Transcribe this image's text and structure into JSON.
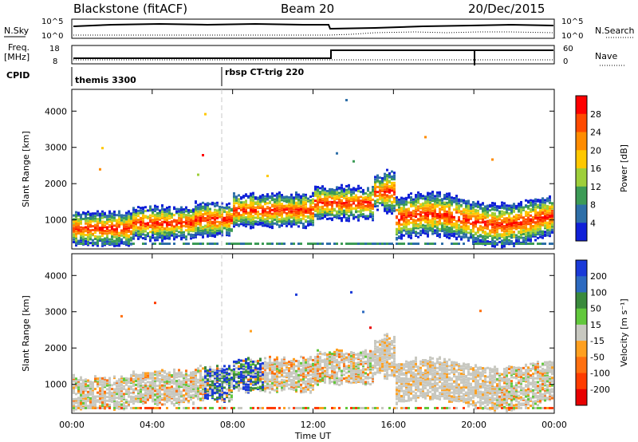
{
  "header": {
    "station": "Blackstone (fitACF)",
    "beam": "Beam 20",
    "date": "20/Dec/2015"
  },
  "top_panels": {
    "nsky_label": "N.Sky",
    "nsky_ticks": [
      "10^5",
      "10^0"
    ],
    "nsearch_label": "N.Search",
    "freq_label_1": "Freq.",
    "freq_label_2": "[MHz]",
    "freq_ticks": [
      "18",
      "8"
    ],
    "nave_label": "Nave",
    "nave_ticks": [
      "60",
      "0"
    ],
    "cpid_label": "CPID",
    "cpid_entries": [
      "themis 3300",
      "rbsp CT-trig 220"
    ]
  },
  "chart_data": [
    {
      "type": "heatmap",
      "panel": "power",
      "ylabel": "Slant Range [km]",
      "ylim": [
        200,
        4600
      ],
      "yticks": [
        1000,
        2000,
        3000,
        4000
      ],
      "xticks": [
        "00:00",
        "04:00",
        "08:00",
        "12:00",
        "16:00",
        "20:00",
        "00:00"
      ],
      "colorbar_label": "Power [dB]",
      "colorbar_ticks": [
        "28",
        "24",
        "20",
        "16",
        "12",
        "8",
        "4"
      ],
      "colorbar_colors": [
        "#ff0000",
        "#ff4a00",
        "#ff8c00",
        "#ffc800",
        "#9ecf3a",
        "#3c9b56",
        "#2e6fa8",
        "#1020d8"
      ],
      "notes": "Backscatter mostly 500-2000 km; strong band near 800-1200 km after 16:00 UT"
    },
    {
      "type": "heatmap",
      "panel": "velocity",
      "ylabel": "Slant Range [km]",
      "ylim": [
        200,
        4600
      ],
      "yticks": [
        1000,
        2000,
        3000,
        4000
      ],
      "xticks": [
        "00:00",
        "04:00",
        "08:00",
        "12:00",
        "16:00",
        "20:00",
        "00:00"
      ],
      "xlabel": "Time UT",
      "colorbar_label": "Velocity [m s⁻¹]",
      "colorbar_ticks": [
        "200",
        "100",
        "50",
        "15",
        "-15",
        "-50",
        "-100",
        "-200"
      ],
      "colorbar_colors": [
        "#1a3ad8",
        "#2d6ac0",
        "#3a8a3c",
        "#62c83c",
        "#c8c8c0",
        "#ffa020",
        "#ff7010",
        "#ff3c00",
        "#e80000"
      ]
    }
  ]
}
